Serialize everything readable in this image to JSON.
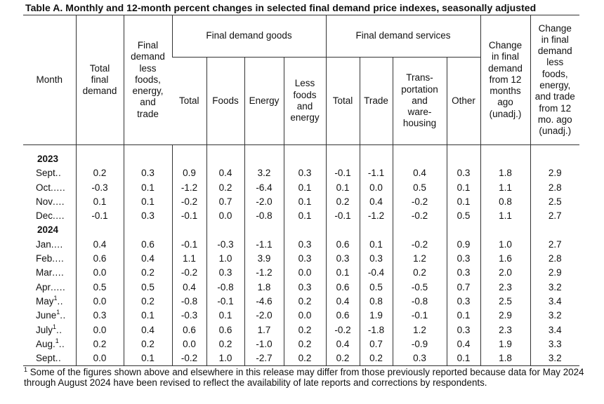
{
  "title": "Table A. Monthly and 12-month percent changes in selected final demand price indexes, seasonally adjusted",
  "headers": {
    "month": "Month",
    "total_final_demand": "Total final demand",
    "fd_less": "Final demand less foods, energy, and trade",
    "goods_group": "Final demand goods",
    "services_group": "Final demand services",
    "goods_total": "Total",
    "goods_foods": "Foods",
    "goods_energy": "Energy",
    "goods_less": "Less foods and energy",
    "serv_total": "Total",
    "serv_trade": "Trade",
    "serv_transport": "Trans- portation and ware- housing",
    "serv_other": "Other",
    "change_12": "Change in final demand from 12 months ago (unadj.)",
    "change_less_12": "Change in final demand less foods, energy, and trade from 12 mo. ago (unadj.)"
  },
  "rows": [
    {
      "type": "year",
      "label": "2023"
    },
    {
      "type": "data",
      "month": "Sept",
      "dots": "..",
      "sup": "",
      "v": [
        "0.2",
        "0.3",
        "0.9",
        "0.4",
        "3.2",
        "0.3",
        "-0.1",
        "-1.1",
        "0.4",
        "0.3",
        "1.8",
        "2.9"
      ]
    },
    {
      "type": "data",
      "month": "Oct",
      "dots": ".....",
      "sup": "",
      "v": [
        "-0.3",
        "0.1",
        "-1.2",
        "0.2",
        "-6.4",
        "0.1",
        "0.1",
        "0.0",
        "0.5",
        "0.1",
        "1.1",
        "2.8"
      ]
    },
    {
      "type": "data",
      "month": "Nov",
      "dots": "....",
      "sup": "",
      "v": [
        "0.1",
        "0.1",
        "-0.2",
        "0.7",
        "-2.0",
        "0.1",
        "0.2",
        "0.4",
        "-0.2",
        "0.1",
        "0.8",
        "2.5"
      ]
    },
    {
      "type": "data",
      "month": "Dec",
      "dots": "....",
      "sup": "",
      "v": [
        "-0.1",
        "0.3",
        "-0.1",
        "0.0",
        "-0.8",
        "0.1",
        "-0.1",
        "-1.2",
        "-0.2",
        "0.5",
        "1.1",
        "2.7"
      ]
    },
    {
      "type": "year",
      "label": "2024"
    },
    {
      "type": "data",
      "month": "Jan",
      "dots": "....",
      "sup": "",
      "v": [
        "0.4",
        "0.6",
        "-0.1",
        "-0.3",
        "-1.1",
        "0.3",
        "0.6",
        "0.1",
        "-0.2",
        "0.9",
        "1.0",
        "2.7"
      ]
    },
    {
      "type": "data",
      "month": "Feb",
      "dots": "....",
      "sup": "",
      "v": [
        "0.6",
        "0.4",
        "1.1",
        "1.0",
        "3.9",
        "0.3",
        "0.3",
        "0.3",
        "1.2",
        "0.3",
        "1.6",
        "2.8"
      ]
    },
    {
      "type": "data",
      "month": "Mar",
      "dots": "....",
      "sup": "",
      "v": [
        "0.0",
        "0.2",
        "-0.2",
        "0.3",
        "-1.2",
        "0.0",
        "0.1",
        "-0.4",
        "0.2",
        "0.3",
        "2.0",
        "2.9"
      ]
    },
    {
      "type": "data",
      "month": "Apr",
      "dots": ".....",
      "sup": "",
      "v": [
        "0.5",
        "0.5",
        "0.4",
        "-0.8",
        "1.8",
        "0.3",
        "0.6",
        "0.5",
        "-0.5",
        "0.7",
        "2.3",
        "3.2"
      ]
    },
    {
      "type": "data",
      "month": "May",
      "dots": "..",
      "sup": "1",
      "v": [
        "0.0",
        "0.2",
        "-0.8",
        "-0.1",
        "-4.6",
        "0.2",
        "0.4",
        "0.8",
        "-0.8",
        "0.3",
        "2.5",
        "3.4"
      ]
    },
    {
      "type": "data",
      "month": "June",
      "dots": "..",
      "sup": "1",
      "v": [
        "0.3",
        "0.1",
        "-0.3",
        "0.1",
        "-2.0",
        "0.0",
        "0.6",
        "1.9",
        "-0.1",
        "0.1",
        "2.9",
        "3.2"
      ]
    },
    {
      "type": "data",
      "month": "July",
      "dots": "..",
      "sup": "1",
      "v": [
        "0.0",
        "0.4",
        "0.6",
        "0.6",
        "1.7",
        "0.2",
        "-0.2",
        "-1.8",
        "1.2",
        "0.3",
        "2.3",
        "3.4"
      ]
    },
    {
      "type": "data",
      "month": "Aug.",
      "dots": "..",
      "sup": "1",
      "v": [
        "0.2",
        "0.2",
        "0.0",
        "0.2",
        "-1.0",
        "0.2",
        "0.4",
        "0.7",
        "-0.9",
        "0.4",
        "1.9",
        "3.3"
      ]
    },
    {
      "type": "data",
      "month": "Sept",
      "dots": "..",
      "sup": "",
      "v": [
        "0.0",
        "0.1",
        "-0.2",
        "1.0",
        "-2.7",
        "0.2",
        "0.2",
        "0.2",
        "0.3",
        "0.1",
        "1.8",
        "3.2"
      ]
    }
  ],
  "footnote": {
    "marker": "1",
    "text": " Some of the figures shown above and elsewhere in this release may differ from those previously reported because data for May 2024 through August 2024 have been revised to reflect the availability of late reports and corrections by respondents."
  }
}
